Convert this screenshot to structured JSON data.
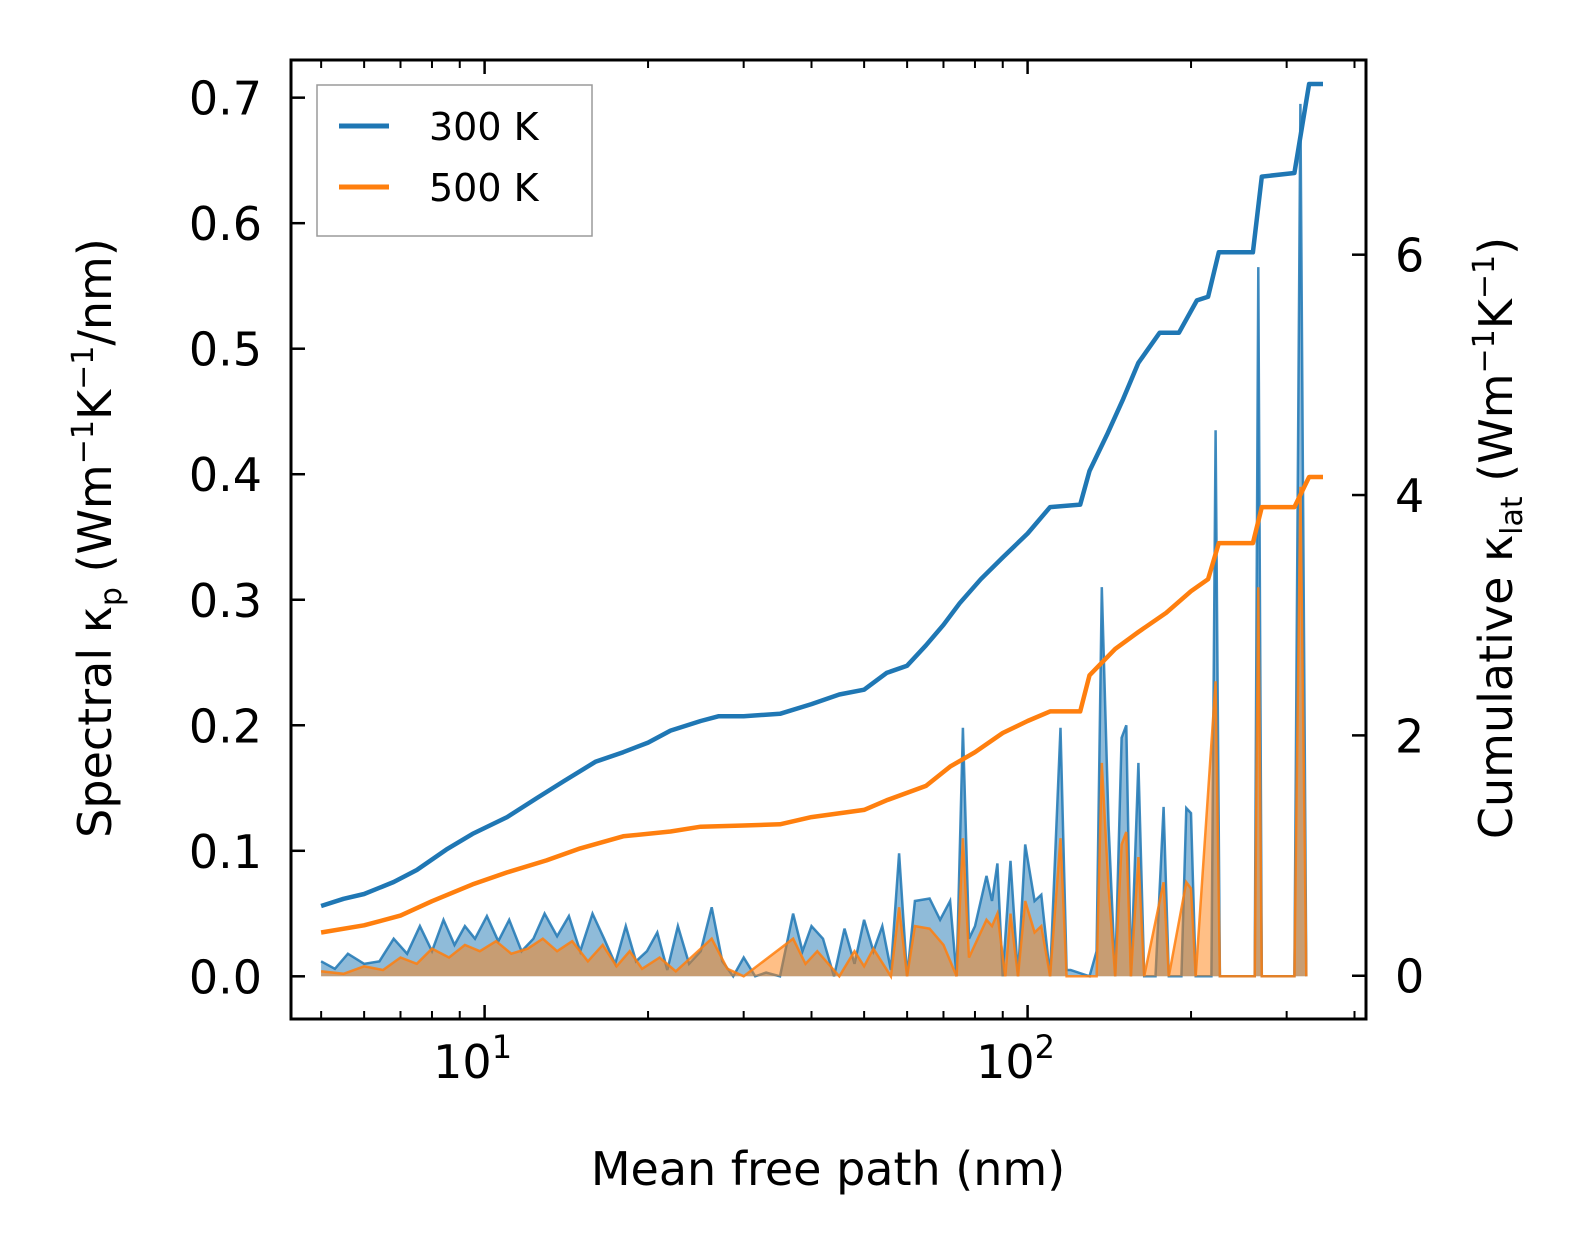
{
  "chart_data": {
    "type": "line",
    "xscale": "log",
    "xlabel": "Mean free path (nm)",
    "xlim": [
      4.4,
      420
    ],
    "xticks": [
      {
        "base": "10",
        "exp": "1"
      },
      {
        "base": "10",
        "exp": "2"
      }
    ],
    "left_axis": {
      "label_parts": [
        "Spectral κ",
        "p",
        " (Wm",
        "−1",
        "K",
        "−1",
        "/nm)"
      ],
      "ylim": [
        -0.034,
        0.73
      ],
      "ticks": [
        "0.0",
        "0.1",
        "0.2",
        "0.3",
        "0.4",
        "0.5",
        "0.6",
        "0.7"
      ]
    },
    "right_axis": {
      "label_parts": [
        "Cumulative κ",
        "lat",
        " (Wm",
        "−1",
        "K",
        "−1",
        ")"
      ],
      "ylim": [
        -0.36,
        7.62
      ],
      "ticks": [
        "0",
        "2",
        "4",
        "6"
      ]
    },
    "legend": {
      "position": "top-left",
      "entries": [
        {
          "label": "300 K",
          "color": "#1f77b4"
        },
        {
          "label": "500 K",
          "color": "#ff7f0e"
        }
      ]
    },
    "series": [
      {
        "name": "300 K",
        "axis": "right",
        "kind": "cumulative",
        "color": "#1f77b4",
        "points": [
          [
            5.0,
            0.58
          ],
          [
            5.5,
            0.64
          ],
          [
            6.0,
            0.68
          ],
          [
            6.8,
            0.78
          ],
          [
            7.5,
            0.88
          ],
          [
            8.5,
            1.05
          ],
          [
            9.5,
            1.18
          ],
          [
            11,
            1.32
          ],
          [
            12.5,
            1.48
          ],
          [
            14,
            1.62
          ],
          [
            16,
            1.78
          ],
          [
            18,
            1.86
          ],
          [
            20,
            1.94
          ],
          [
            22,
            2.04
          ],
          [
            25,
            2.12
          ],
          [
            27,
            2.16
          ],
          [
            30,
            2.16
          ],
          [
            35,
            2.18
          ],
          [
            40,
            2.26
          ],
          [
            45,
            2.34
          ],
          [
            50,
            2.38
          ],
          [
            55,
            2.52
          ],
          [
            60,
            2.58
          ],
          [
            65,
            2.75
          ],
          [
            70,
            2.92
          ],
          [
            75,
            3.1
          ],
          [
            82,
            3.3
          ],
          [
            90,
            3.48
          ],
          [
            100,
            3.68
          ],
          [
            110,
            3.9
          ],
          [
            125,
            3.92
          ],
          [
            130,
            4.2
          ],
          [
            140,
            4.5
          ],
          [
            150,
            4.8
          ],
          [
            160,
            5.1
          ],
          [
            175,
            5.35
          ],
          [
            190,
            5.35
          ],
          [
            205,
            5.62
          ],
          [
            215,
            5.65
          ],
          [
            225,
            6.02
          ],
          [
            260,
            6.02
          ],
          [
            270,
            6.65
          ],
          [
            310,
            6.68
          ],
          [
            330,
            7.42
          ],
          [
            350,
            7.42
          ]
        ]
      },
      {
        "name": "500 K",
        "axis": "right",
        "kind": "cumulative",
        "color": "#ff7f0e",
        "points": [
          [
            5.0,
            0.36
          ],
          [
            6,
            0.42
          ],
          [
            7,
            0.5
          ],
          [
            8,
            0.62
          ],
          [
            9.5,
            0.76
          ],
          [
            11,
            0.86
          ],
          [
            13,
            0.96
          ],
          [
            15,
            1.06
          ],
          [
            18,
            1.16
          ],
          [
            22,
            1.2
          ],
          [
            25,
            1.24
          ],
          [
            30,
            1.25
          ],
          [
            35,
            1.26
          ],
          [
            40,
            1.32
          ],
          [
            50,
            1.38
          ],
          [
            55,
            1.46
          ],
          [
            65,
            1.58
          ],
          [
            72,
            1.74
          ],
          [
            80,
            1.86
          ],
          [
            90,
            2.02
          ],
          [
            100,
            2.12
          ],
          [
            110,
            2.2
          ],
          [
            125,
            2.2
          ],
          [
            130,
            2.5
          ],
          [
            145,
            2.72
          ],
          [
            160,
            2.86
          ],
          [
            180,
            3.02
          ],
          [
            200,
            3.2
          ],
          [
            215,
            3.3
          ],
          [
            225,
            3.6
          ],
          [
            260,
            3.6
          ],
          [
            270,
            3.9
          ],
          [
            310,
            3.9
          ],
          [
            330,
            4.15
          ],
          [
            350,
            4.15
          ]
        ]
      },
      {
        "name": "300 K spectral",
        "axis": "left",
        "kind": "spectral",
        "color": "#1f77b4",
        "points": [
          [
            5.0,
            0.012
          ],
          [
            5.3,
            0.006
          ],
          [
            5.6,
            0.018
          ],
          [
            6.0,
            0.01
          ],
          [
            6.4,
            0.012
          ],
          [
            6.8,
            0.03
          ],
          [
            7.2,
            0.018
          ],
          [
            7.6,
            0.04
          ],
          [
            8.0,
            0.02
          ],
          [
            8.4,
            0.045
          ],
          [
            8.8,
            0.025
          ],
          [
            9.2,
            0.04
          ],
          [
            9.6,
            0.03
          ],
          [
            10.1,
            0.048
          ],
          [
            10.6,
            0.028
          ],
          [
            11.1,
            0.045
          ],
          [
            11.7,
            0.02
          ],
          [
            12.3,
            0.03
          ],
          [
            12.9,
            0.05
          ],
          [
            13.6,
            0.032
          ],
          [
            14.3,
            0.048
          ],
          [
            15.0,
            0.02
          ],
          [
            15.8,
            0.05
          ],
          [
            16.6,
            0.03
          ],
          [
            17.4,
            0.01
          ],
          [
            18.2,
            0.04
          ],
          [
            19.0,
            0.012
          ],
          [
            19.9,
            0.02
          ],
          [
            20.8,
            0.035
          ],
          [
            21.7,
            0.005
          ],
          [
            22.7,
            0.04
          ],
          [
            23.8,
            0.01
          ],
          [
            25.0,
            0.02
          ],
          [
            26.2,
            0.055
          ],
          [
            27.4,
            0.012
          ],
          [
            28.7,
            0.0
          ],
          [
            30.0,
            0.015
          ],
          [
            31.5,
            0.0
          ],
          [
            33,
            0.003
          ],
          [
            35,
            0.0
          ],
          [
            37,
            0.05
          ],
          [
            38.5,
            0.02
          ],
          [
            40,
            0.04
          ],
          [
            42,
            0.03
          ],
          [
            44,
            0.0
          ],
          [
            46,
            0.038
          ],
          [
            48,
            0.01
          ],
          [
            50,
            0.045
          ],
          [
            52,
            0.02
          ],
          [
            54,
            0.04
          ],
          [
            56,
            0.005
          ],
          [
            58,
            0.098
          ],
          [
            60,
            0.0
          ],
          [
            62,
            0.06
          ],
          [
            66,
            0.062
          ],
          [
            69,
            0.045
          ],
          [
            72,
            0.06
          ],
          [
            74,
            0.0
          ],
          [
            76,
            0.198
          ],
          [
            78,
            0.03
          ],
          [
            80,
            0.04
          ],
          [
            84,
            0.08
          ],
          [
            86,
            0.06
          ],
          [
            88,
            0.09
          ],
          [
            90,
            0.0
          ],
          [
            93,
            0.092
          ],
          [
            96,
            0.0
          ],
          [
            99,
            0.105
          ],
          [
            103,
            0.06
          ],
          [
            106,
            0.065
          ],
          [
            110,
            0.0
          ],
          [
            115,
            0.198
          ],
          [
            118,
            0.005
          ],
          [
            120,
            0.005
          ],
          [
            130,
            0.0
          ],
          [
            134,
            0.02
          ],
          [
            137,
            0.31
          ],
          [
            141,
            0.12
          ],
          [
            145,
            0.0
          ],
          [
            149,
            0.19
          ],
          [
            152,
            0.2
          ],
          [
            155,
            0.0
          ],
          [
            160,
            0.17
          ],
          [
            164,
            0.0
          ],
          [
            172,
            0.0
          ],
          [
            178,
            0.135
          ],
          [
            182,
            0.0
          ],
          [
            192,
            0.0
          ],
          [
            196,
            0.134
          ],
          [
            200,
            0.13
          ],
          [
            204,
            0.0
          ],
          [
            218,
            0.0
          ],
          [
            222,
            0.435
          ],
          [
            226,
            0.0
          ],
          [
            262,
            0.0
          ],
          [
            266,
            0.565
          ],
          [
            270,
            0.0
          ],
          [
            310,
            0.0
          ],
          [
            318,
            0.695
          ],
          [
            326,
            0.0
          ]
        ]
      },
      {
        "name": "500 K spectral",
        "axis": "left",
        "kind": "spectral",
        "color": "#ff7f0e",
        "points": [
          [
            5.0,
            0.004
          ],
          [
            5.5,
            0.002
          ],
          [
            6.0,
            0.008
          ],
          [
            6.5,
            0.005
          ],
          [
            7.0,
            0.015
          ],
          [
            7.5,
            0.01
          ],
          [
            8.0,
            0.022
          ],
          [
            8.6,
            0.015
          ],
          [
            9.2,
            0.025
          ],
          [
            9.8,
            0.02
          ],
          [
            10.5,
            0.028
          ],
          [
            11.2,
            0.018
          ],
          [
            12,
            0.022
          ],
          [
            12.8,
            0.03
          ],
          [
            13.6,
            0.02
          ],
          [
            14.5,
            0.028
          ],
          [
            15.5,
            0.012
          ],
          [
            16.5,
            0.025
          ],
          [
            17.5,
            0.008
          ],
          [
            18.5,
            0.02
          ],
          [
            19.5,
            0.006
          ],
          [
            21,
            0.015
          ],
          [
            22.5,
            0.004
          ],
          [
            24,
            0.015
          ],
          [
            26.2,
            0.03
          ],
          [
            28,
            0.006
          ],
          [
            30,
            0.0
          ],
          [
            37,
            0.03
          ],
          [
            39,
            0.01
          ],
          [
            41,
            0.02
          ],
          [
            45,
            0.0
          ],
          [
            48,
            0.02
          ],
          [
            50,
            0.008
          ],
          [
            52,
            0.022
          ],
          [
            56,
            0.0
          ],
          [
            58,
            0.055
          ],
          [
            60,
            0.0
          ],
          [
            62,
            0.04
          ],
          [
            66,
            0.038
          ],
          [
            70,
            0.025
          ],
          [
            74,
            0.0
          ],
          [
            76,
            0.11
          ],
          [
            78,
            0.015
          ],
          [
            84,
            0.045
          ],
          [
            86,
            0.04
          ],
          [
            88,
            0.05
          ],
          [
            91,
            0.0
          ],
          [
            93,
            0.05
          ],
          [
            96,
            0.0
          ],
          [
            99,
            0.06
          ],
          [
            103,
            0.035
          ],
          [
            106,
            0.04
          ],
          [
            110,
            0.0
          ],
          [
            115,
            0.11
          ],
          [
            118,
            0.0
          ],
          [
            134,
            0.0
          ],
          [
            137,
            0.17
          ],
          [
            141,
            0.07
          ],
          [
            145,
            0.0
          ],
          [
            149,
            0.105
          ],
          [
            152,
            0.115
          ],
          [
            155,
            0.0
          ],
          [
            160,
            0.095
          ],
          [
            164,
            0.0
          ],
          [
            178,
            0.075
          ],
          [
            182,
            0.0
          ],
          [
            196,
            0.075
          ],
          [
            200,
            0.07
          ],
          [
            204,
            0.0
          ],
          [
            222,
            0.235
          ],
          [
            226,
            0.0
          ],
          [
            262,
            0.0
          ],
          [
            266,
            0.31
          ],
          [
            270,
            0.0
          ],
          [
            310,
            0.0
          ],
          [
            318,
            0.39
          ],
          [
            326,
            0.0
          ]
        ]
      }
    ]
  }
}
